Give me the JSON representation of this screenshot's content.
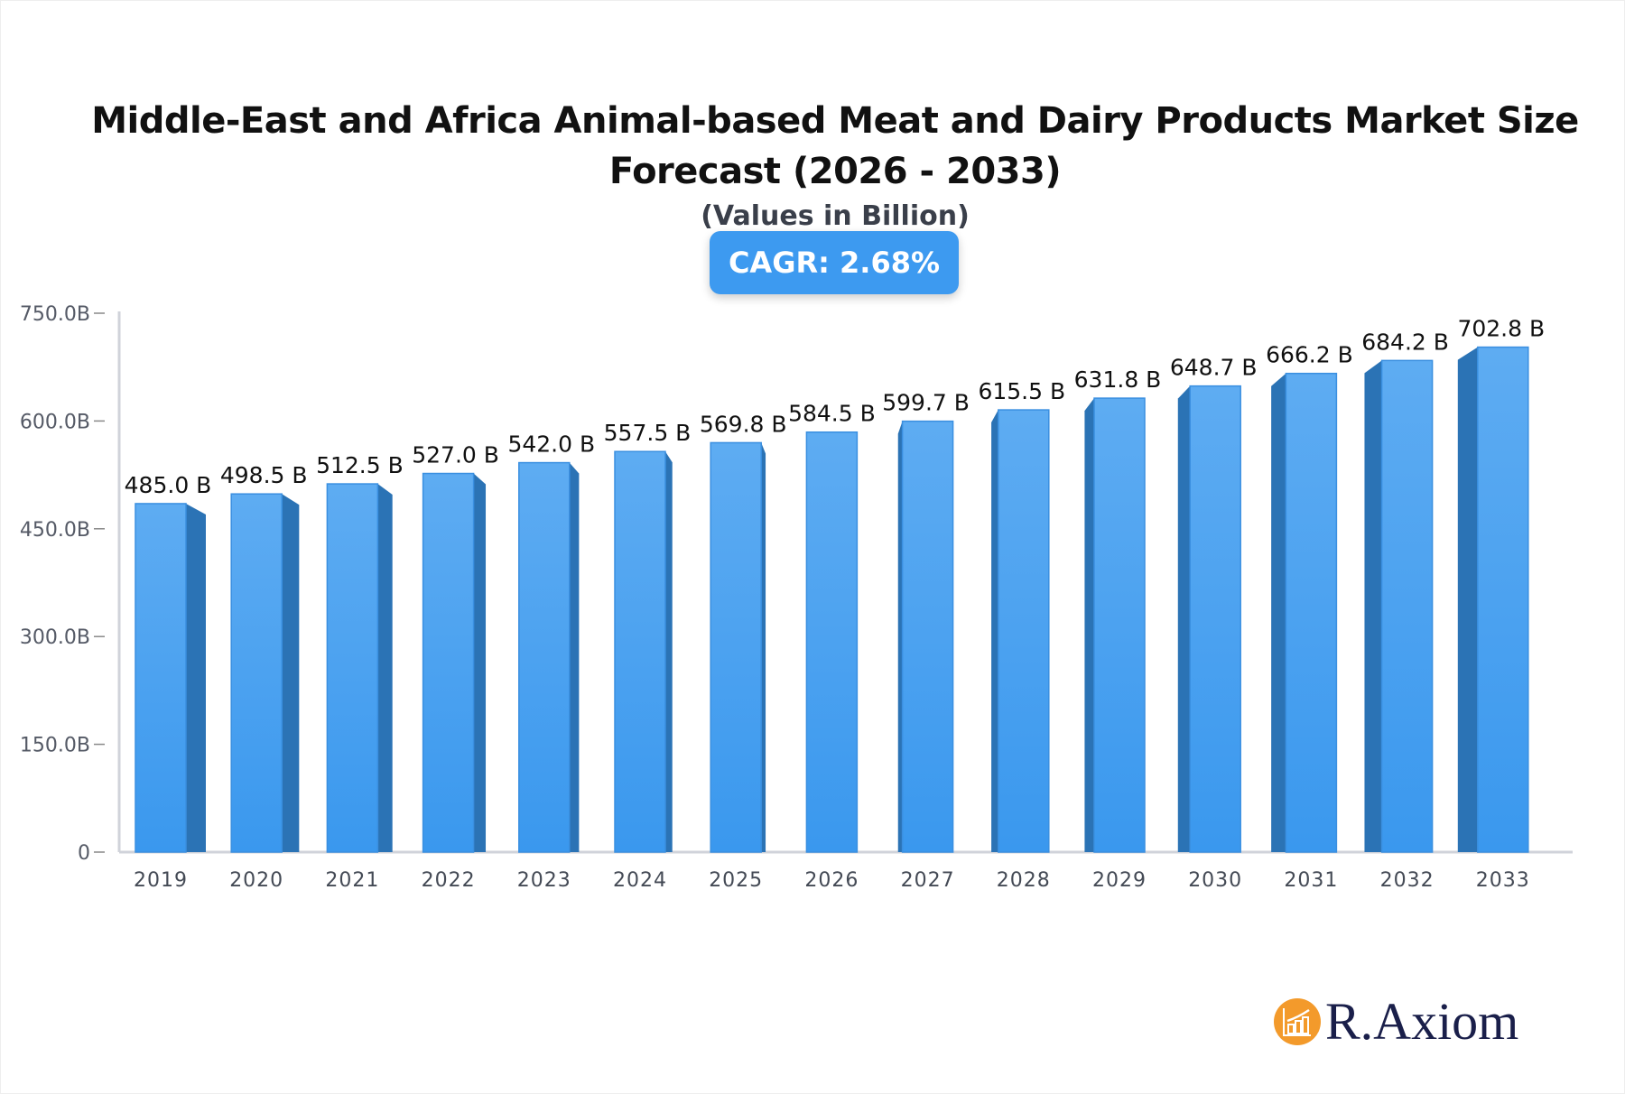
{
  "chart_data": {
    "type": "bar",
    "title": "Middle-East and Africa Animal-based Meat and Dairy Products Market Size Forecast (2026 - 2033)",
    "subtitle": "(Values in Billion)",
    "badge": "CAGR: 2.68%",
    "categories": [
      "2019",
      "2020",
      "2021",
      "2022",
      "2023",
      "2024",
      "2025",
      "2026",
      "2027",
      "2028",
      "2029",
      "2030",
      "2031",
      "2032",
      "2033"
    ],
    "values": [
      485.0,
      498.5,
      512.5,
      527.0,
      542.0,
      557.5,
      569.8,
      584.5,
      599.7,
      615.5,
      631.8,
      648.7,
      666.2,
      684.2,
      702.8
    ],
    "data_labels": [
      "485.0 B",
      "498.5 B",
      "512.5 B",
      "527.0 B",
      "542.0 B",
      "557.5 B",
      "569.8 B",
      "584.5 B",
      "599.7 B",
      "615.5 B",
      "631.8 B",
      "648.7 B",
      "666.2 B",
      "684.2 B",
      "702.8 B"
    ],
    "y_ticks": [
      0,
      150,
      300,
      450,
      600,
      750
    ],
    "y_tick_labels": [
      "0",
      "150.0B",
      "300.0B",
      "450.0B",
      "600.0B",
      "750.0B"
    ],
    "ylim": [
      0,
      750
    ],
    "grid": false,
    "colors": {
      "bar_front": "#4aa3f0",
      "bar_side": "#2b73b5",
      "badge": "#3d9af0"
    }
  },
  "brand": {
    "name": "R.Axiom",
    "icon": "bar-chart-growth-icon",
    "color": "#f39a2b"
  }
}
